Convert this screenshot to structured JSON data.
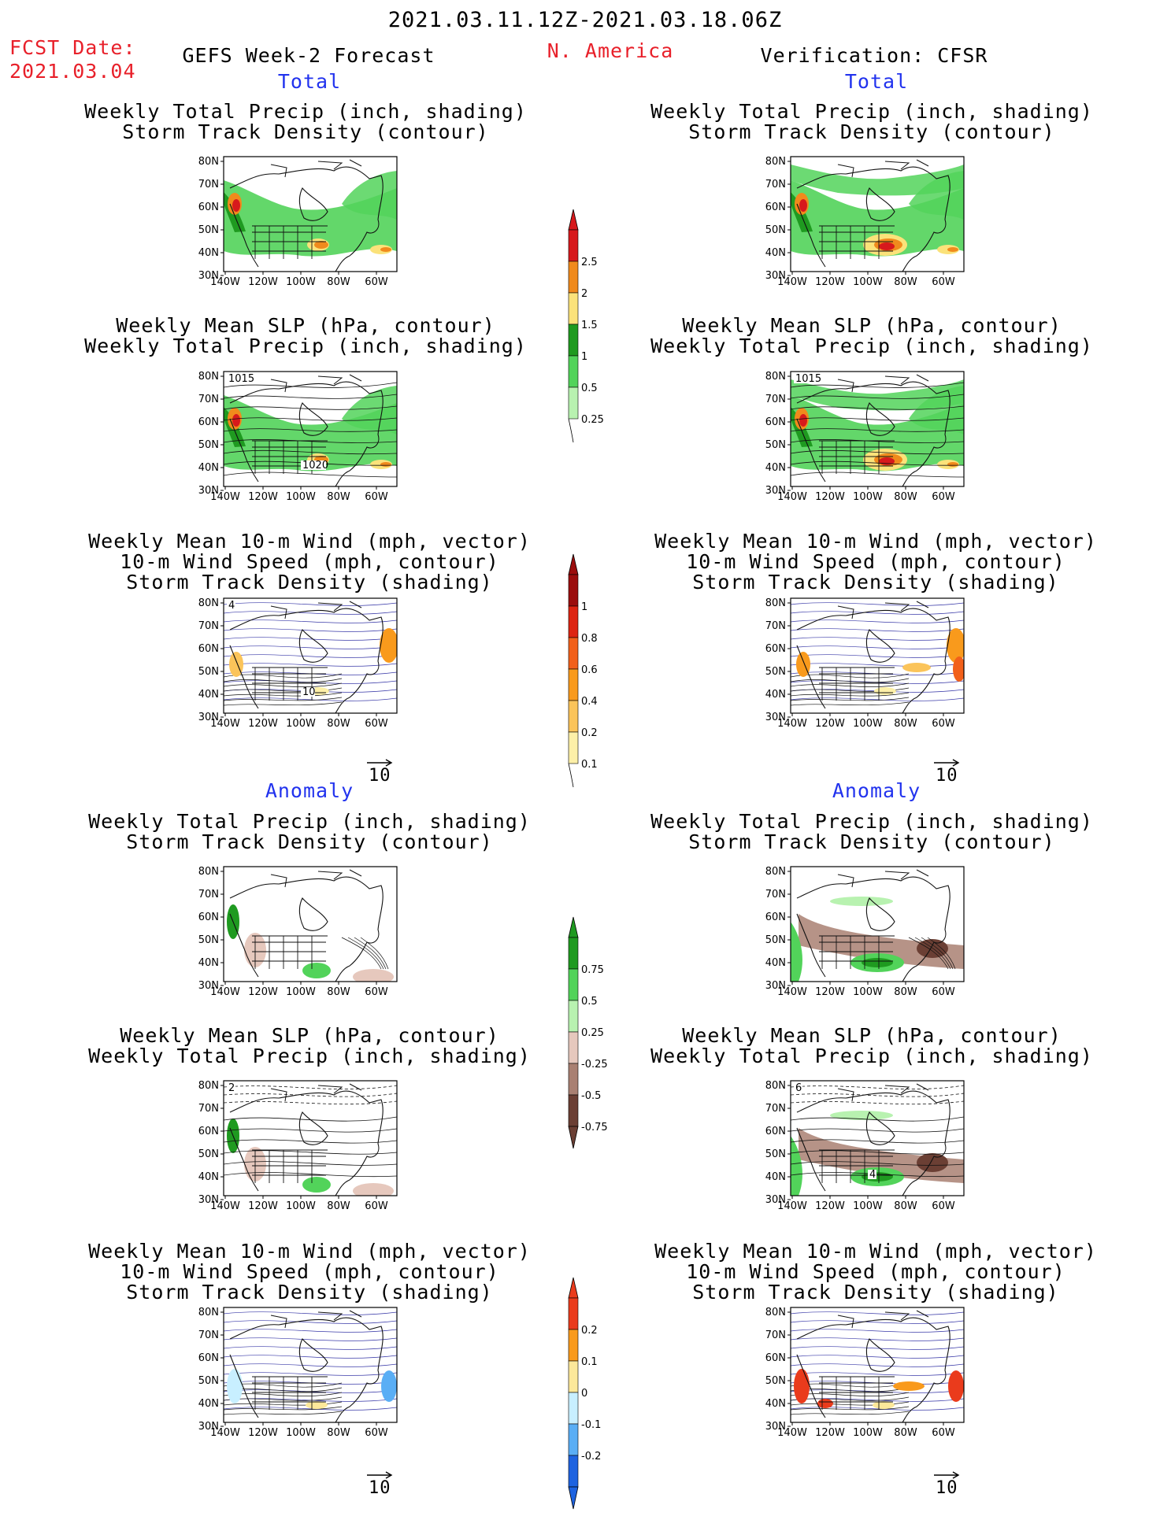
{
  "header": {
    "date_range": "2021.03.11.12Z-2021.03.18.06Z",
    "fcst_label": "FCST Date:",
    "fcst_date": "2021.03.04",
    "forecast_title": "GEFS Week-2 Forecast",
    "region": "N. America",
    "verification": "Verification: CFSR"
  },
  "sections": {
    "total": "Total",
    "anomaly": "Anomaly"
  },
  "panel_titles": {
    "precip_track": [
      "Weekly Total Precip (inch, shading)",
      "Storm Track Density (contour)"
    ],
    "slp_precip": [
      "Weekly Mean SLP (hPa, contour)",
      "Weekly Total Precip (inch, shading)"
    ],
    "wind_track": [
      "Weekly Mean 10-m Wind (mph, vector)",
      "10-m Wind Speed (mph, contour)",
      "Storm Track Density (shading)"
    ]
  },
  "axes": {
    "lat_ticks": [
      "80N",
      "70N",
      "60N",
      "50N",
      "40N",
      "30N"
    ],
    "lon_ticks": [
      "140W",
      "120W",
      "100W",
      "80W",
      "60W"
    ]
  },
  "contour_labels": {
    "slp_total_left": [
      "1015",
      "1020"
    ],
    "slp_total_right": [
      "1015"
    ],
    "wind_total_left": [
      "4",
      "10"
    ],
    "slp_anom_left": [
      "2"
    ],
    "slp_anom_right": [
      "6",
      "4"
    ]
  },
  "vector_reference": "10",
  "colorbars": {
    "precip_total": {
      "labels": [
        "2.5",
        "2",
        "1.5",
        "1",
        "0.5",
        "0.25"
      ],
      "colors": [
        "#d7191c",
        "#f08a1c",
        "#fbe27a",
        "#1f9a20",
        "#52d35a",
        "#b8f2b0"
      ]
    },
    "track_total": {
      "labels": [
        "1",
        "0.8",
        "0.6",
        "0.4",
        "0.2",
        "0.1"
      ],
      "colors": [
        "#9b0d0d",
        "#dd2412",
        "#f2601a",
        "#f99a1c",
        "#fbc45a",
        "#fdf0a8"
      ]
    },
    "precip_anom": {
      "labels": [
        "0.75",
        "0.5",
        "0.25",
        "-0.25",
        "-0.5",
        "-0.75"
      ],
      "colors": [
        "#1f9a20",
        "#52d35a",
        "#b8f2b0",
        "#e6c8bd",
        "#a98072",
        "#6b3f34"
      ]
    },
    "track_anom": {
      "labels": [
        "0.2",
        "0.1",
        "0",
        "-0.1",
        "-0.2"
      ],
      "colors": [
        "#ea3b1c",
        "#f99a1c",
        "#fce89a",
        "#c8efff",
        "#5aaef5",
        "#1e63e0"
      ]
    }
  }
}
